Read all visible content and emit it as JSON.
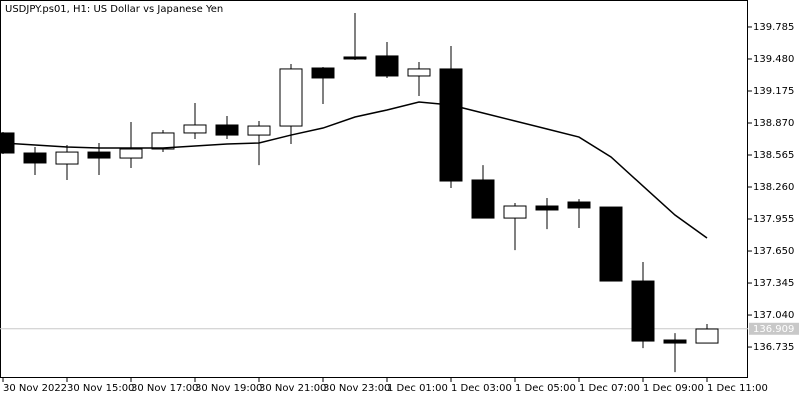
{
  "chart_data": {
    "type": "candlestick",
    "title": "USDJPY.ps01, H1:  US Dollar vs Japanese Yen",
    "categories": [
      "30 Nov 2022",
      null,
      "30 Nov 15:00",
      null,
      "30 Nov 17:00",
      null,
      "30 Nov 19:00",
      null,
      "30 Nov 21:00",
      null,
      "30 Nov 23:00",
      null,
      "1 Dec 01:00",
      null,
      "1 Dec 03:00",
      null,
      "1 Dec 05:00",
      null,
      "1 Dec 07:00",
      null,
      "1 Dec 09:00",
      null,
      "1 Dec 11:00"
    ],
    "open": [
      138.775,
      138.584,
      138.479,
      138.593,
      138.536,
      138.622,
      138.775,
      138.851,
      138.755,
      138.841,
      139.394,
      139.499,
      139.509,
      139.318,
      139.385,
      138.327,
      137.964,
      138.079,
      138.117,
      138.069,
      137.364,
      136.802,
      136.773
    ],
    "high": [
      138.784,
      138.641,
      138.66,
      138.679,
      138.879,
      138.803,
      139.06,
      138.937,
      138.889,
      139.432,
      139.404,
      139.918,
      139.642,
      139.451,
      139.604,
      138.469,
      138.107,
      138.155,
      138.145,
      138.069,
      137.545,
      136.868,
      136.954
    ],
    "low": [
      138.574,
      138.374,
      138.327,
      138.374,
      138.441,
      138.593,
      138.717,
      138.717,
      138.469,
      138.67,
      139.051,
      139.47,
      139.299,
      139.127,
      138.25,
      137.964,
      137.659,
      137.859,
      137.869,
      137.364,
      136.725,
      136.496,
      136.773
    ],
    "close": [
      138.584,
      138.489,
      138.593,
      138.536,
      138.622,
      138.775,
      138.851,
      138.755,
      138.841,
      139.385,
      139.299,
      139.48,
      139.318,
      139.385,
      138.317,
      137.964,
      138.079,
      138.041,
      138.06,
      137.364,
      136.792,
      136.773,
      136.907
    ],
    "overlays": [
      {
        "type": "line",
        "color": "#000000",
        "values": [
          138.679,
          138.66,
          138.641,
          138.632,
          138.632,
          138.632,
          138.651,
          138.67,
          138.679,
          138.755,
          138.822,
          138.927,
          138.994,
          139.07,
          139.041,
          138.965,
          138.889,
          138.813,
          138.736,
          138.546,
          138.269,
          137.993,
          137.774
        ]
      }
    ],
    "last_price": 136.909,
    "ylim": [
      136.44,
      140.042
    ],
    "yticks": [
      {
        "value": 136.735,
        "label": "136.735"
      },
      {
        "value": 137.04,
        "label": "137.040"
      },
      137.345,
      {
        "value": 137.65,
        "label": "137.650"
      },
      {
        "value": 137.955,
        "label": "137.955"
      },
      {
        "value": 138.26,
        "label": "138.260"
      },
      138.565,
      {
        "value": 138.87,
        "label": "138.870"
      },
      139.175,
      {
        "value": 139.48,
        "label": "139.480"
      },
      139.785
    ],
    "bull_color": "#ffffff",
    "bear_color": "#000000"
  }
}
